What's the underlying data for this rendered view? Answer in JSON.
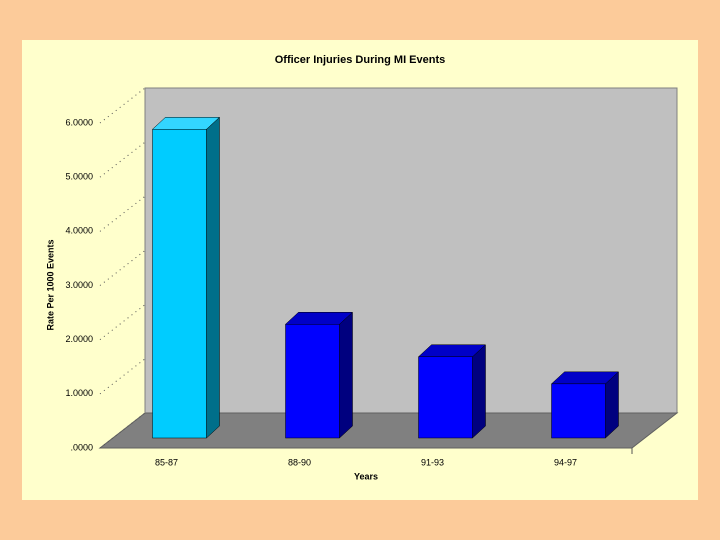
{
  "chart_data": {
    "type": "bar3d",
    "title": "Officer Injuries During MI Events",
    "x_label": "Years",
    "y_label": "Rate Per 1000 Events",
    "categories": [
      "85-87",
      "88-90",
      "91-93",
      "94-97"
    ],
    "values": [
      5.7,
      2.1,
      1.5,
      1.0
    ],
    "colors": [
      "#00ccff",
      "#0000ff",
      "#0000ff",
      "#0000ff"
    ],
    "ylim": [
      0,
      6
    ],
    "yticks": [
      {
        "value": 0,
        "label": ".0000"
      },
      {
        "value": 1,
        "label": "1.0000"
      },
      {
        "value": 2,
        "label": "2.0000"
      },
      {
        "value": 3,
        "label": "3.0000"
      },
      {
        "value": 4,
        "label": "4.0000"
      },
      {
        "value": 5,
        "label": "5.0000"
      },
      {
        "value": 6,
        "label": "6.0000"
      }
    ],
    "grid": true
  }
}
